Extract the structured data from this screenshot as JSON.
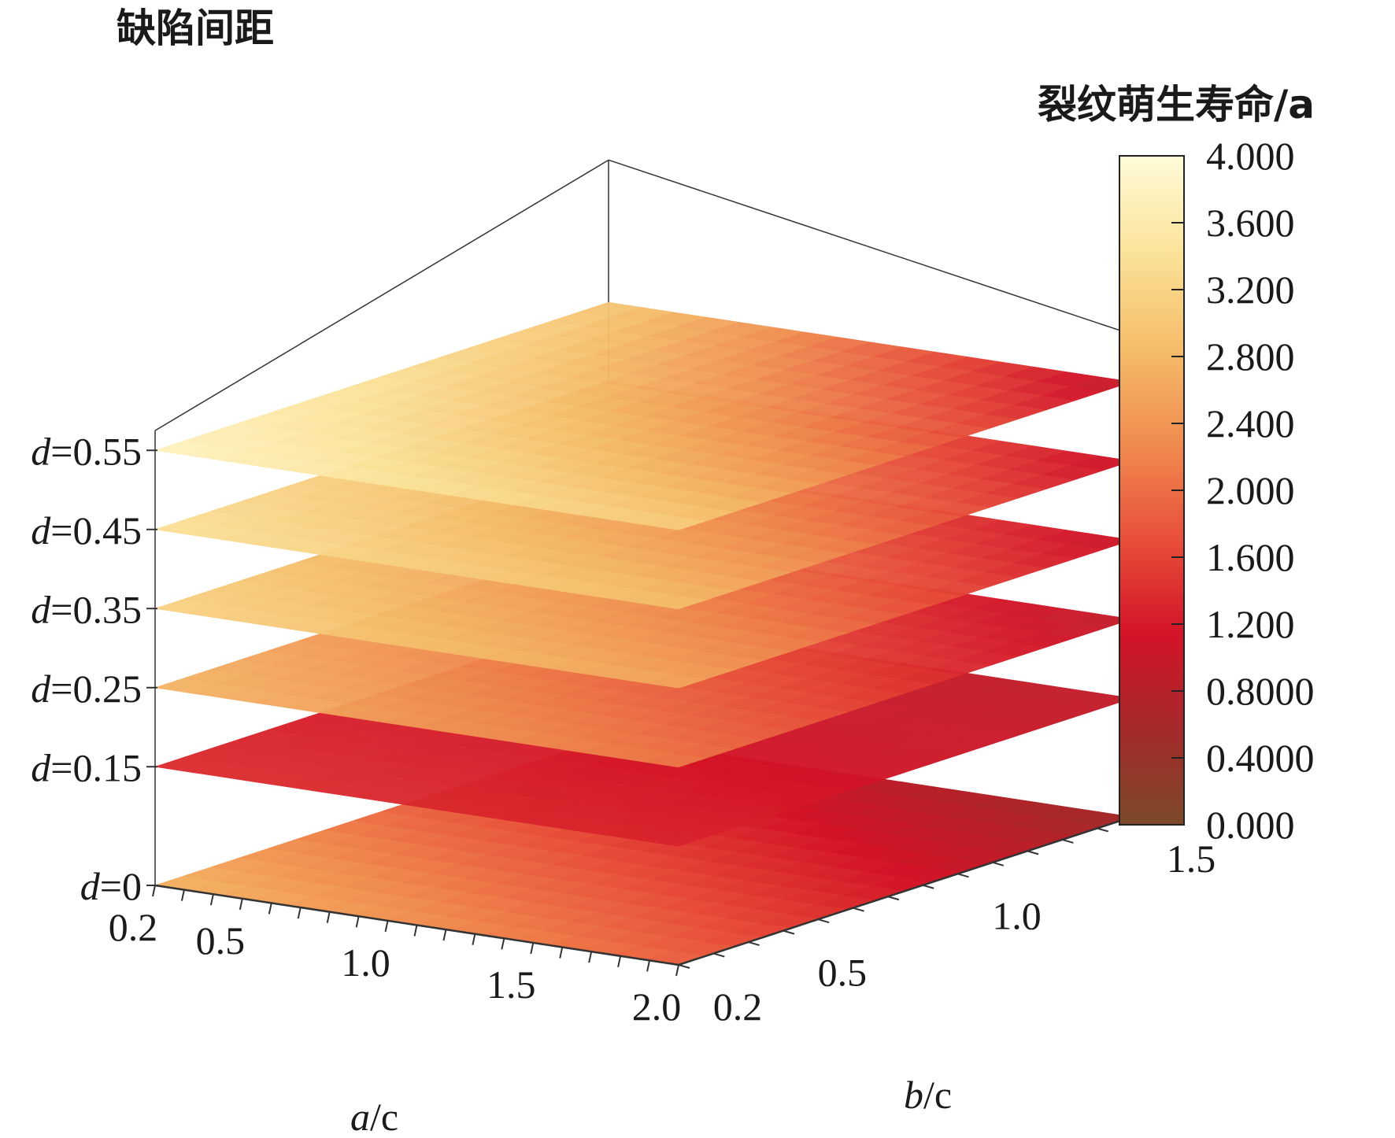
{
  "chart_data": {
    "type": "heatmap",
    "title": "缺陷间距",
    "colorbar_title": "裂纹萌生寿命/a",
    "xlabel_var": "a",
    "xlabel_rest": "/c",
    "ylabel_var": "b",
    "ylabel_rest": "/c",
    "x_ticks": [
      "0.2",
      "0.5",
      "1.0",
      "1.5",
      "2.0"
    ],
    "y_ticks": [
      "0.2",
      "0.5",
      "1.0",
      "1.5"
    ],
    "slice_var": "d",
    "slices": [
      {
        "label": "=0",
        "d": 0,
        "corner_lives": [
          2.8,
          1.9,
          1.2,
          0.5
        ]
      },
      {
        "label": "=0.15",
        "d": 0.15,
        "corner_lives": [
          1.4,
          1.3,
          1.0,
          0.9
        ]
      },
      {
        "label": "=0.25",
        "d": 0.25,
        "corner_lives": [
          2.8,
          2.1,
          1.9,
          0.9
        ]
      },
      {
        "label": "=0.35",
        "d": 0.35,
        "corner_lives": [
          3.2,
          2.6,
          2.3,
          1.0
        ]
      },
      {
        "label": "=0.45",
        "d": 0.45,
        "corner_lives": [
          3.4,
          2.9,
          2.7,
          1.0
        ]
      },
      {
        "label": "=0.55",
        "d": 0.55,
        "corner_lives": [
          3.8,
          3.1,
          3.0,
          0.9
        ]
      }
    ],
    "colorbar_ticks": [
      "4.000",
      "3.600",
      "3.200",
      "2.800",
      "2.400",
      "2.000",
      "1.600",
      "1.200",
      "0.8000",
      "0.4000",
      "0.000"
    ],
    "colorbar_range": [
      0,
      4
    ],
    "colormap": [
      "#7b4a2a",
      "#a52a2a",
      "#d31327",
      "#e8503a",
      "#f08c50",
      "#f5bd6a",
      "#fbe39a",
      "#fffbd8"
    ]
  }
}
